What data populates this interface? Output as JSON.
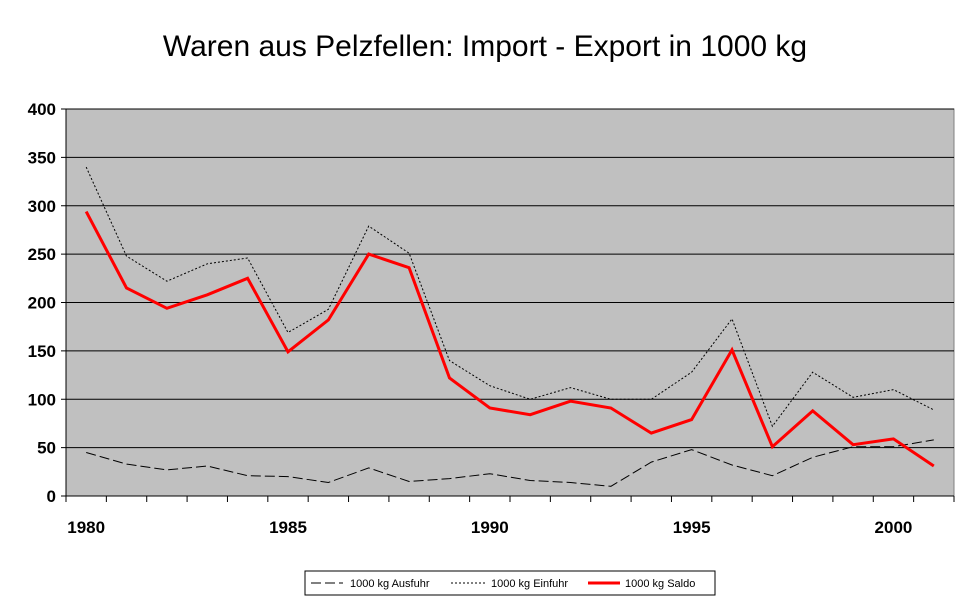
{
  "chart_data": {
    "type": "line",
    "title": "Waren aus Pelzfellen: Import - Export in 1000 kg",
    "xlabel": "",
    "ylabel": "",
    "x": [
      1980,
      1981,
      1982,
      1983,
      1984,
      1985,
      1986,
      1987,
      1988,
      1989,
      1990,
      1991,
      1992,
      1993,
      1994,
      1995,
      1996,
      1997,
      1998,
      1999,
      2000,
      2001
    ],
    "xlim": [
      1980,
      2001
    ],
    "ylim": [
      0,
      400
    ],
    "x_ticks": [
      "1980",
      "1985",
      "1990",
      "1995",
      "2000"
    ],
    "y_ticks": [
      "0",
      "50",
      "100",
      "150",
      "200",
      "250",
      "300",
      "350",
      "400"
    ],
    "grid": "horizontal",
    "background": "#c0c0c0",
    "legend_position": "bottom",
    "series": [
      {
        "name": "1000 kg Ausfuhr",
        "color": "#000000",
        "style": "dashed-long",
        "values": [
          45,
          33,
          27,
          31,
          21,
          20,
          14,
          29,
          15,
          18,
          23,
          16,
          14,
          10,
          35,
          48,
          32,
          21,
          40,
          51,
          51,
          58
        ]
      },
      {
        "name": "1000 kg Einfuhr",
        "color": "#000000",
        "style": "dotted",
        "values": [
          340,
          248,
          222,
          240,
          246,
          169,
          193,
          279,
          251,
          140,
          114,
          100,
          112,
          100,
          100,
          128,
          183,
          72,
          128,
          102,
          110,
          89
        ]
      },
      {
        "name": "1000 kg Saldo",
        "color": "#ff0000",
        "style": "solid-thick",
        "values": [
          294,
          215,
          194,
          208,
          225,
          149,
          182,
          250,
          236,
          122,
          91,
          84,
          98,
          91,
          65,
          79,
          151,
          51,
          88,
          53,
          59,
          31
        ]
      }
    ]
  }
}
